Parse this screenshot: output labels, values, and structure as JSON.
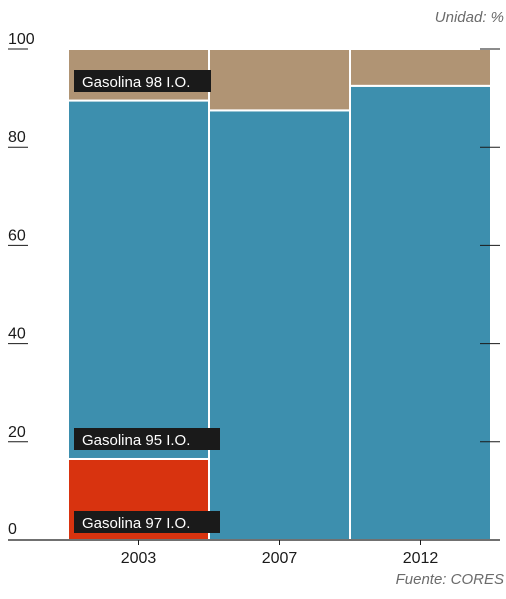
{
  "unit_label": "Unidad: %",
  "source_label": "Fuente: CORES",
  "colors": {
    "gasolina_97": "#d8330f",
    "gasolina_95": "#3d8fae",
    "gasolina_98": "#b09474",
    "axis": "#1a1a1a",
    "tick_text": "#1a1a1a",
    "note_text": "#6b6b6b",
    "label_bg": "#1a1a1a",
    "label_text": "#ffffff",
    "separator": "#ffffff"
  },
  "chart_data": {
    "type": "bar",
    "stacked": true,
    "categories": [
      "2003",
      "2007",
      "2012"
    ],
    "series": [
      {
        "name": "Gasolina 97 I.O.",
        "color": "#d8330f",
        "values": [
          16.5,
          0,
          0
        ]
      },
      {
        "name": "Gasolina 95 I.O.",
        "color": "#3d8fae",
        "values": [
          73.0,
          87.5,
          92.5
        ]
      },
      {
        "name": "Gasolina 98 I.O.",
        "color": "#b09474",
        "values": [
          10.5,
          12.5,
          7.5
        ]
      }
    ],
    "yticks": [
      "0",
      "20",
      "40",
      "60",
      "80",
      "100"
    ],
    "ylim": [
      0,
      100
    ],
    "grid": false,
    "legend": "inline labels"
  }
}
